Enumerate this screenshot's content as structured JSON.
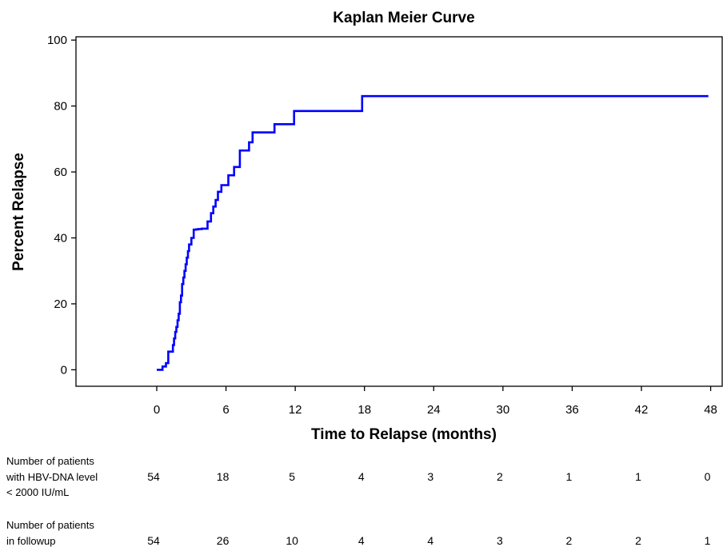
{
  "chart_data": {
    "type": "line",
    "title": "Kaplan Meier Curve",
    "xlabel": "Time to Relapse (months)",
    "ylabel": "Percent Relapse",
    "xlim": [
      -7,
      49
    ],
    "ylim": [
      -5,
      101
    ],
    "xticks": [
      0,
      6,
      12,
      18,
      24,
      30,
      36,
      42,
      48
    ],
    "xtick_labels": [
      "0",
      "6",
      "12",
      "18",
      "24",
      "30",
      "36",
      "42",
      "48"
    ],
    "yticks": [
      0,
      20,
      40,
      60,
      80,
      100
    ],
    "ytick_labels": [
      "0",
      "20",
      "40",
      "60",
      "80",
      "100"
    ],
    "grid": false,
    "line_color": "#0000ff",
    "series": [
      {
        "step": "post",
        "x": [
          0,
          0.5,
          0.8,
          1.0,
          1.4,
          1.5,
          1.6,
          1.7,
          1.8,
          1.9,
          2.0,
          2.1,
          2.2,
          2.3,
          2.4,
          2.5,
          2.6,
          2.7,
          2.8,
          3.0,
          3.2,
          3.4,
          3.6,
          3.9,
          4.4,
          4.7,
          4.9,
          5.1,
          5.3,
          5.6,
          6.2,
          6.7,
          7.2,
          8.0,
          8.3,
          10.2,
          11.9,
          17.8,
          47.8
        ],
        "y": [
          0,
          1.0,
          2.0,
          5.5,
          7.5,
          9.5,
          11.5,
          13.0,
          15.0,
          17.0,
          20.5,
          22.5,
          26.0,
          28.0,
          30.0,
          32.0,
          34.0,
          36.0,
          38.0,
          40.0,
          42.5,
          42.6,
          42.7,
          42.8,
          45.0,
          47.5,
          49.5,
          51.5,
          54.0,
          56.0,
          59.0,
          61.5,
          66.5,
          69.0,
          72.0,
          74.5,
          78.5,
          83.0,
          83.0
        ]
      }
    ]
  },
  "risk_table": {
    "times": [
      0,
      6,
      12,
      18,
      24,
      30,
      36,
      42,
      48
    ],
    "rows": [
      {
        "label_lines": [
          "Number of patients",
          "with HBV-DNA level",
          "< 2000 IU/mL"
        ],
        "values": [
          "54",
          "18",
          "5",
          "4",
          "3",
          "2",
          "1",
          "1",
          "0"
        ]
      },
      {
        "label_lines": [
          "Number of patients",
          "in followup"
        ],
        "values": [
          "54",
          "26",
          "10",
          "4",
          "4",
          "3",
          "2",
          "2",
          "1"
        ]
      }
    ]
  }
}
